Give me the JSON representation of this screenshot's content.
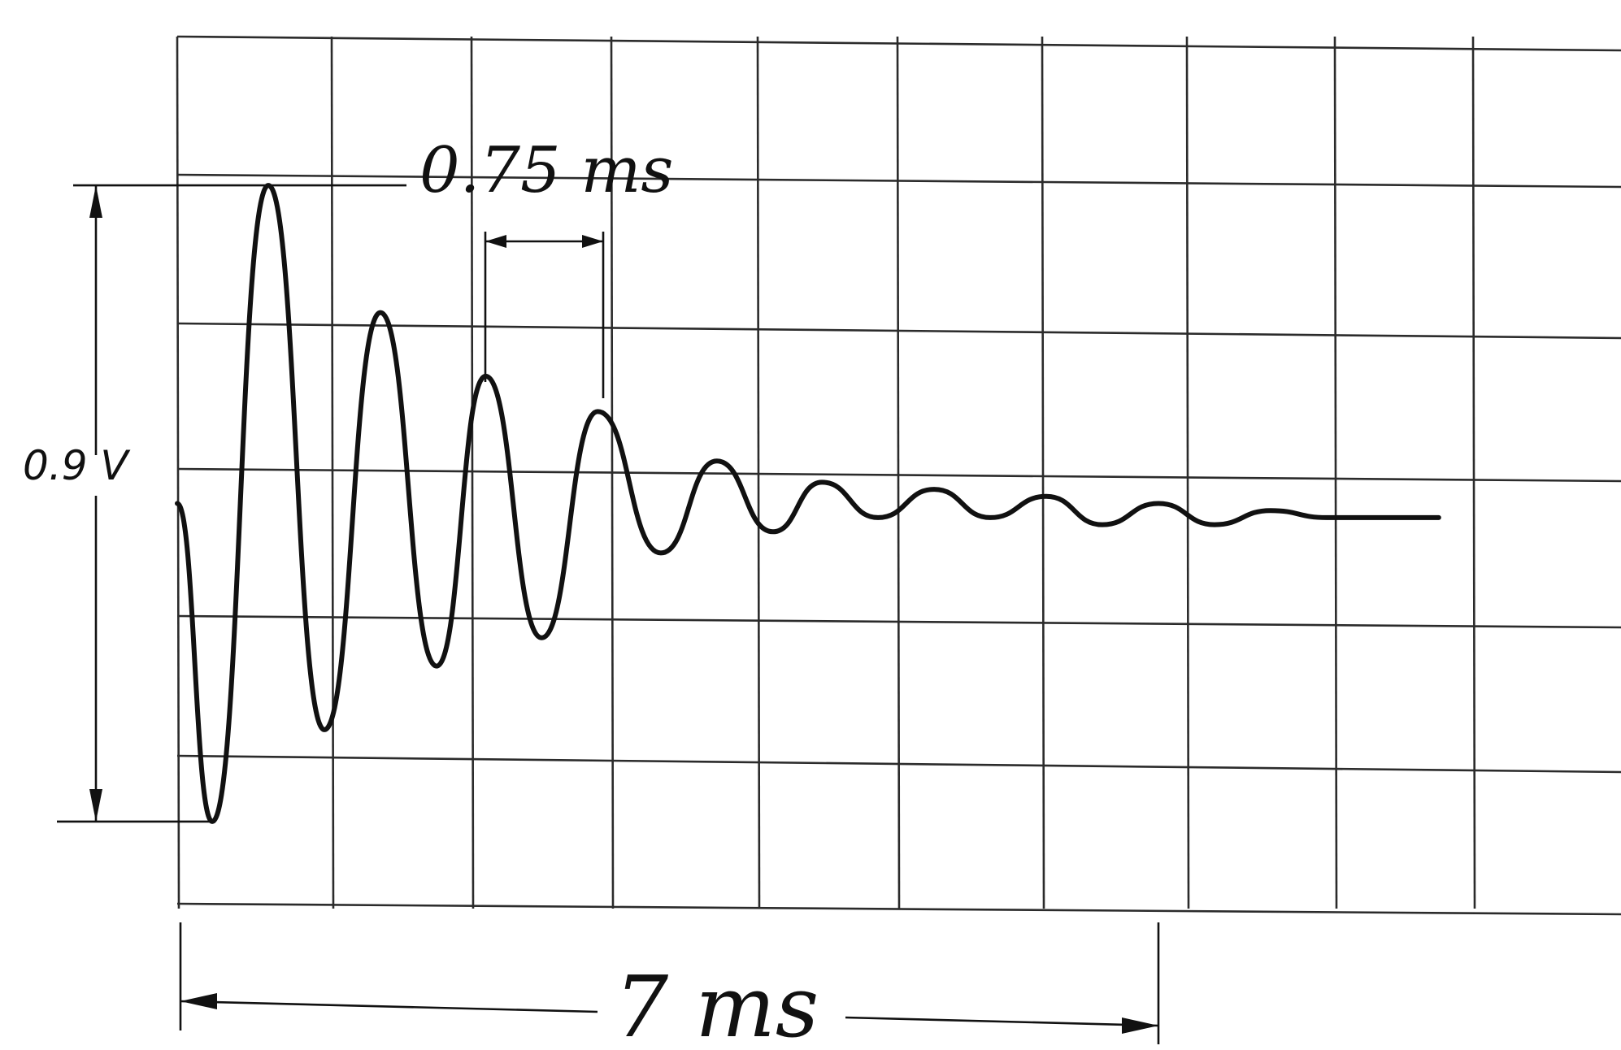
{
  "chart_data": {
    "type": "line",
    "title": "",
    "xlabel": "",
    "ylabel": "",
    "grid": true,
    "xlim": [
      0,
      10.3
    ],
    "ylim": [
      -0.6,
      0.6
    ],
    "series": [
      {
        "values_x_ms": [
          0.0,
          0.25,
          0.65,
          1.05,
          1.45,
          1.85,
          2.2,
          2.6,
          3.0,
          3.45,
          3.85,
          4.25,
          4.6,
          5.0,
          5.4,
          5.8,
          6.2,
          6.6,
          7.0,
          7.4,
          7.8,
          8.2,
          8.6,
          9.0
        ],
        "values_y_v": [
          0.0,
          -0.45,
          0.45,
          -0.32,
          0.27,
          -0.23,
          0.18,
          -0.19,
          0.13,
          -0.07,
          0.06,
          -0.04,
          0.03,
          -0.02,
          0.02,
          -0.02,
          0.01,
          -0.03,
          0.0,
          -0.03,
          -0.01,
          -0.02,
          -0.02,
          -0.02
        ]
      }
    ],
    "annotations": {
      "amplitude_label": "0.9 V",
      "amplitude_peak_to_peak_v": 0.9,
      "period_label": "0.75 ms",
      "period_ms": 0.75,
      "duration_label": "7 ms",
      "duration_ms": 7
    }
  }
}
